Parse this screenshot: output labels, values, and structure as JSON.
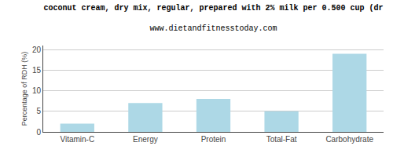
{
  "chart_data": {
    "type": "bar",
    "title": "coconut cream, dry mix, regular, prepared with 2% milk per 0.500 cup (dr",
    "subtitle": "www.dietandfitnesstoday.com",
    "categories": [
      "Vitamin-C",
      "Energy",
      "Protein",
      "Total-Fat",
      "Carbohydrate"
    ],
    "values": [
      2,
      7,
      8,
      5,
      19
    ],
    "color": "#add8e6",
    "ylabel": "Percentage of RDH (%)",
    "ylim": [
      0,
      21
    ],
    "yticks": [
      0,
      5,
      10,
      15,
      20
    ],
    "grid": true
  }
}
